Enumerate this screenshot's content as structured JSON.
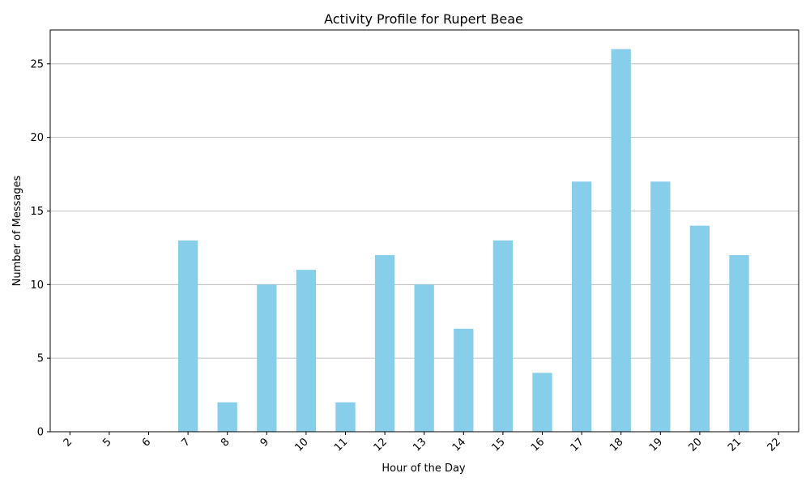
{
  "chart_data": {
    "type": "bar",
    "title": "Activity Profile for Rupert Beae",
    "xlabel": "Hour of the Day",
    "ylabel": "Number of Messages",
    "categories": [
      "2",
      "5",
      "6",
      "7",
      "8",
      "9",
      "10",
      "11",
      "12",
      "13",
      "14",
      "15",
      "16",
      "17",
      "18",
      "19",
      "20",
      "21",
      "22"
    ],
    "values": [
      0,
      0,
      0,
      13,
      2,
      10,
      11,
      2,
      12,
      10,
      7,
      13,
      4,
      17,
      26,
      17,
      14,
      12,
      0
    ],
    "ylim": [
      0,
      27.3
    ],
    "yticks": [
      0,
      5,
      10,
      15,
      20,
      25
    ],
    "grid": "y",
    "bar_color": "#87CEEB",
    "xtick_rotation": 45
  }
}
